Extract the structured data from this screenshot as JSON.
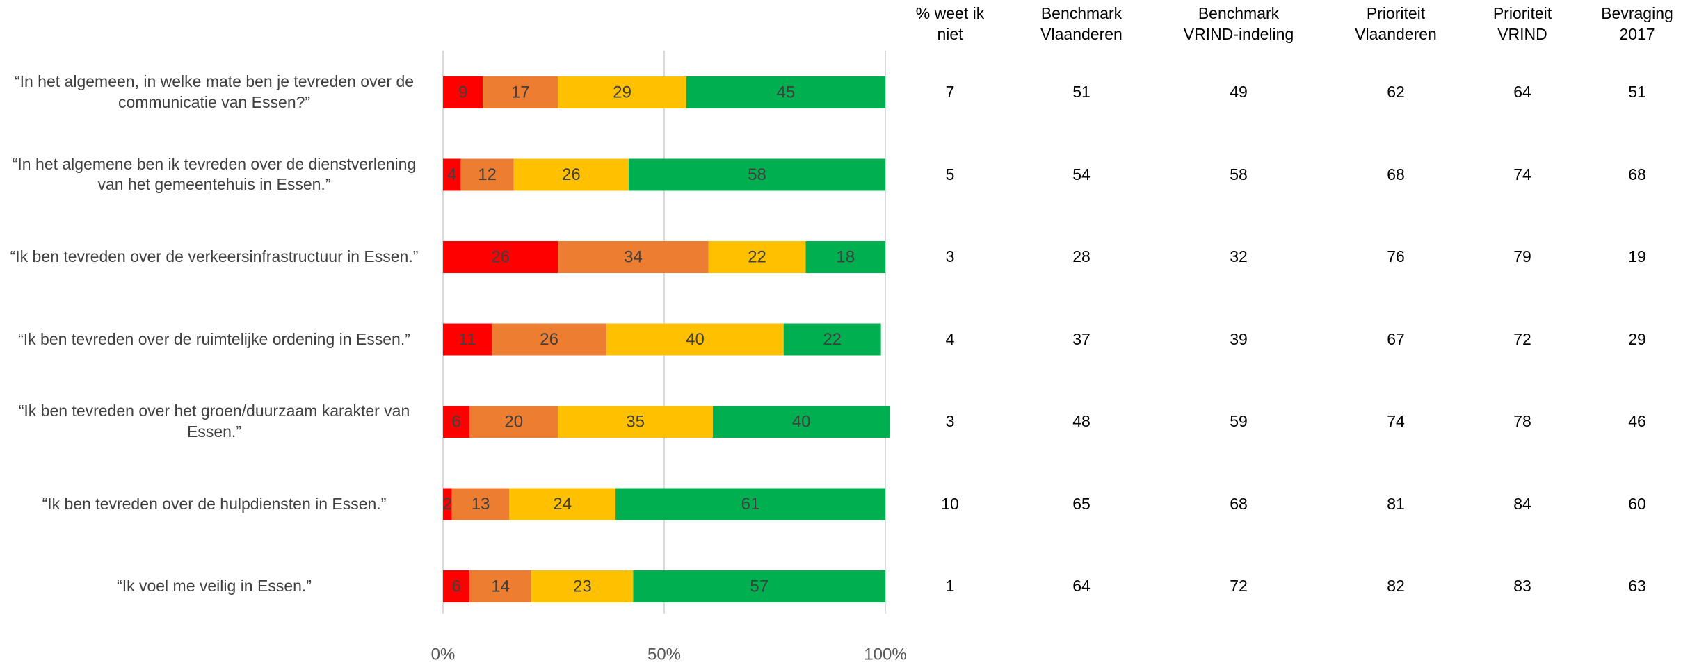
{
  "chart_data": {
    "type": "stacked-bar",
    "categories": [
      "“In het algemeen, in welke mate ben je tevreden over de communicatie van Essen?”",
      "“In het algemene ben ik tevreden over de dienstverlening van het gemeentehuis in Essen.”",
      "“Ik ben tevreden over de verkeersinfrastructuur in Essen.”",
      "“Ik ben tevreden over de ruimtelijke ordening in Essen.”",
      "“Ik ben tevreden over het groen/duurzaam karakter van Essen.”",
      "“Ik ben tevreden over de hulpdiensten in Essen.”",
      "“Ik voel me veilig in Essen.”"
    ],
    "series": [
      {
        "color": "#ff0000",
        "values": [
          9,
          4,
          26,
          11,
          6,
          2,
          6
        ]
      },
      {
        "color": "#ed7d31",
        "values": [
          17,
          12,
          34,
          26,
          20,
          13,
          14
        ]
      },
      {
        "color": "#ffc000",
        "values": [
          29,
          26,
          22,
          40,
          35,
          24,
          23
        ]
      },
      {
        "color": "#00b050",
        "values": [
          45,
          58,
          18,
          22,
          40,
          61,
          57
        ]
      }
    ],
    "xlim": [
      0,
      100
    ],
    "xticks": [
      {
        "value": 0,
        "label": "0%"
      },
      {
        "value": 50,
        "label": "50%"
      },
      {
        "value": 100,
        "label": "100%"
      }
    ],
    "grid": true
  },
  "table": {
    "headers": [
      "% weet ik niet",
      "Benchmark Vlaanderen",
      "Benchmark VRIND-indeling",
      "Prioriteit Vlaanderen",
      "Prioriteit VRIND",
      "Bevraging 2017"
    ],
    "rows": [
      [
        7,
        51,
        49,
        62,
        64,
        51
      ],
      [
        5,
        54,
        58,
        68,
        74,
        68
      ],
      [
        3,
        28,
        32,
        76,
        79,
        19
      ],
      [
        4,
        37,
        39,
        67,
        72,
        29
      ],
      [
        3,
        48,
        59,
        74,
        78,
        46
      ],
      [
        10,
        65,
        68,
        81,
        84,
        60
      ],
      [
        1,
        64,
        72,
        82,
        83,
        63
      ]
    ]
  }
}
